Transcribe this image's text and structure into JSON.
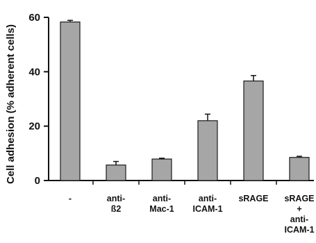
{
  "chart_data": {
    "type": "bar",
    "ylabel": "Cell adhesion (% adherent cells)",
    "xlabel": "",
    "ylim": [
      0,
      60
    ],
    "yticks": [
      "0",
      "20",
      "40",
      "60"
    ],
    "grid": false,
    "categories": [
      [
        "-"
      ],
      [
        "anti-",
        "ß2"
      ],
      [
        "anti-",
        "Mac-1"
      ],
      [
        "anti-",
        "ICAM-1"
      ],
      [
        "sRAGE"
      ],
      [
        "sRAGE",
        "+",
        "anti-",
        "ICAM-1"
      ]
    ],
    "values": [
      58.3,
      5.7,
      7.9,
      22.0,
      36.6,
      8.5
    ],
    "errors": [
      0.6,
      1.3,
      0.3,
      2.4,
      2.0,
      0.4
    ],
    "bar_color": "#a6a6a6",
    "bar_edge_color": "#1a1a1a"
  }
}
